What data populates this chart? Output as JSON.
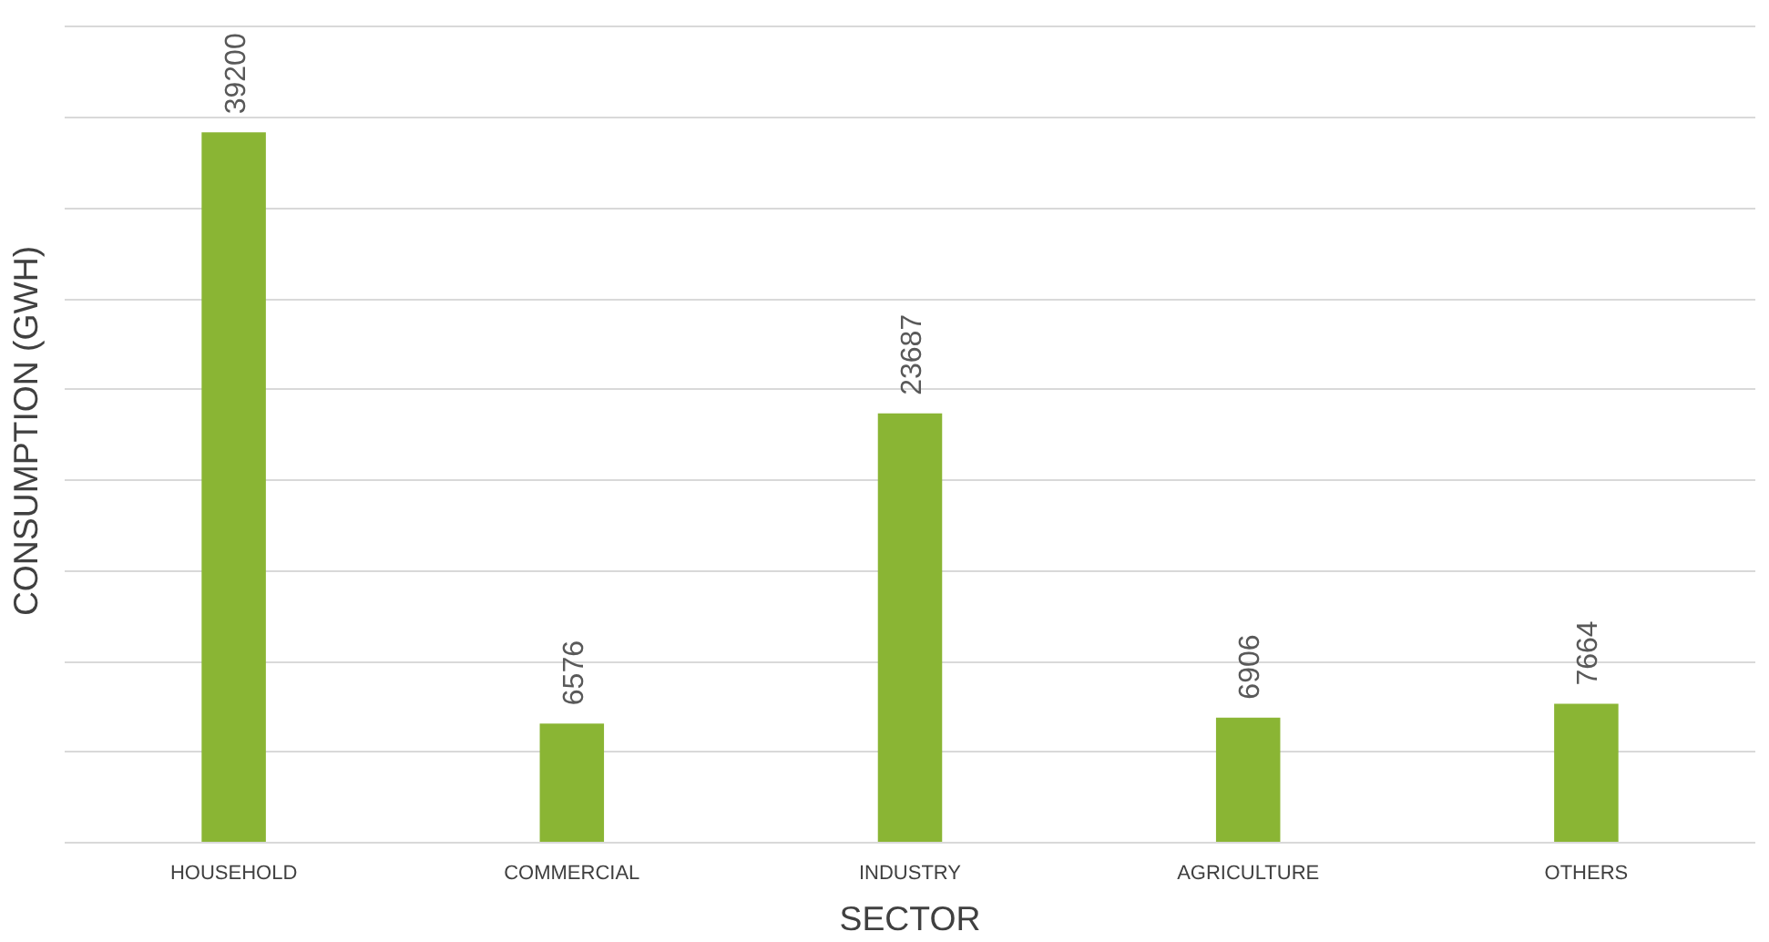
{
  "chart_data": {
    "type": "bar",
    "xlabel": "SECTOR",
    "ylabel": "CONSUMPTION (GWH)",
    "categories": [
      "HOUSEHOLD",
      "COMMERCIAL",
      "INDUSTRY",
      "AGRICULTURE",
      "OTHERS"
    ],
    "values": [
      39200,
      6576,
      23687,
      6906,
      7664
    ],
    "color": "#8ab534",
    "yticks": [
      {
        "value": 0,
        "label": null
      },
      {
        "value": 5000,
        "label": null
      },
      {
        "value": 10000,
        "label": null
      },
      {
        "value": 15000,
        "label": null
      },
      {
        "value": 20000,
        "label": null
      },
      {
        "value": 25000,
        "label": null
      },
      {
        "value": 30000,
        "label": null
      },
      {
        "value": 35000,
        "label": null
      },
      {
        "value": 40000,
        "label": null
      },
      {
        "value": 45000,
        "label": null
      }
    ],
    "tick_labels": "x",
    "grid": "y",
    "data_labels": true
  }
}
